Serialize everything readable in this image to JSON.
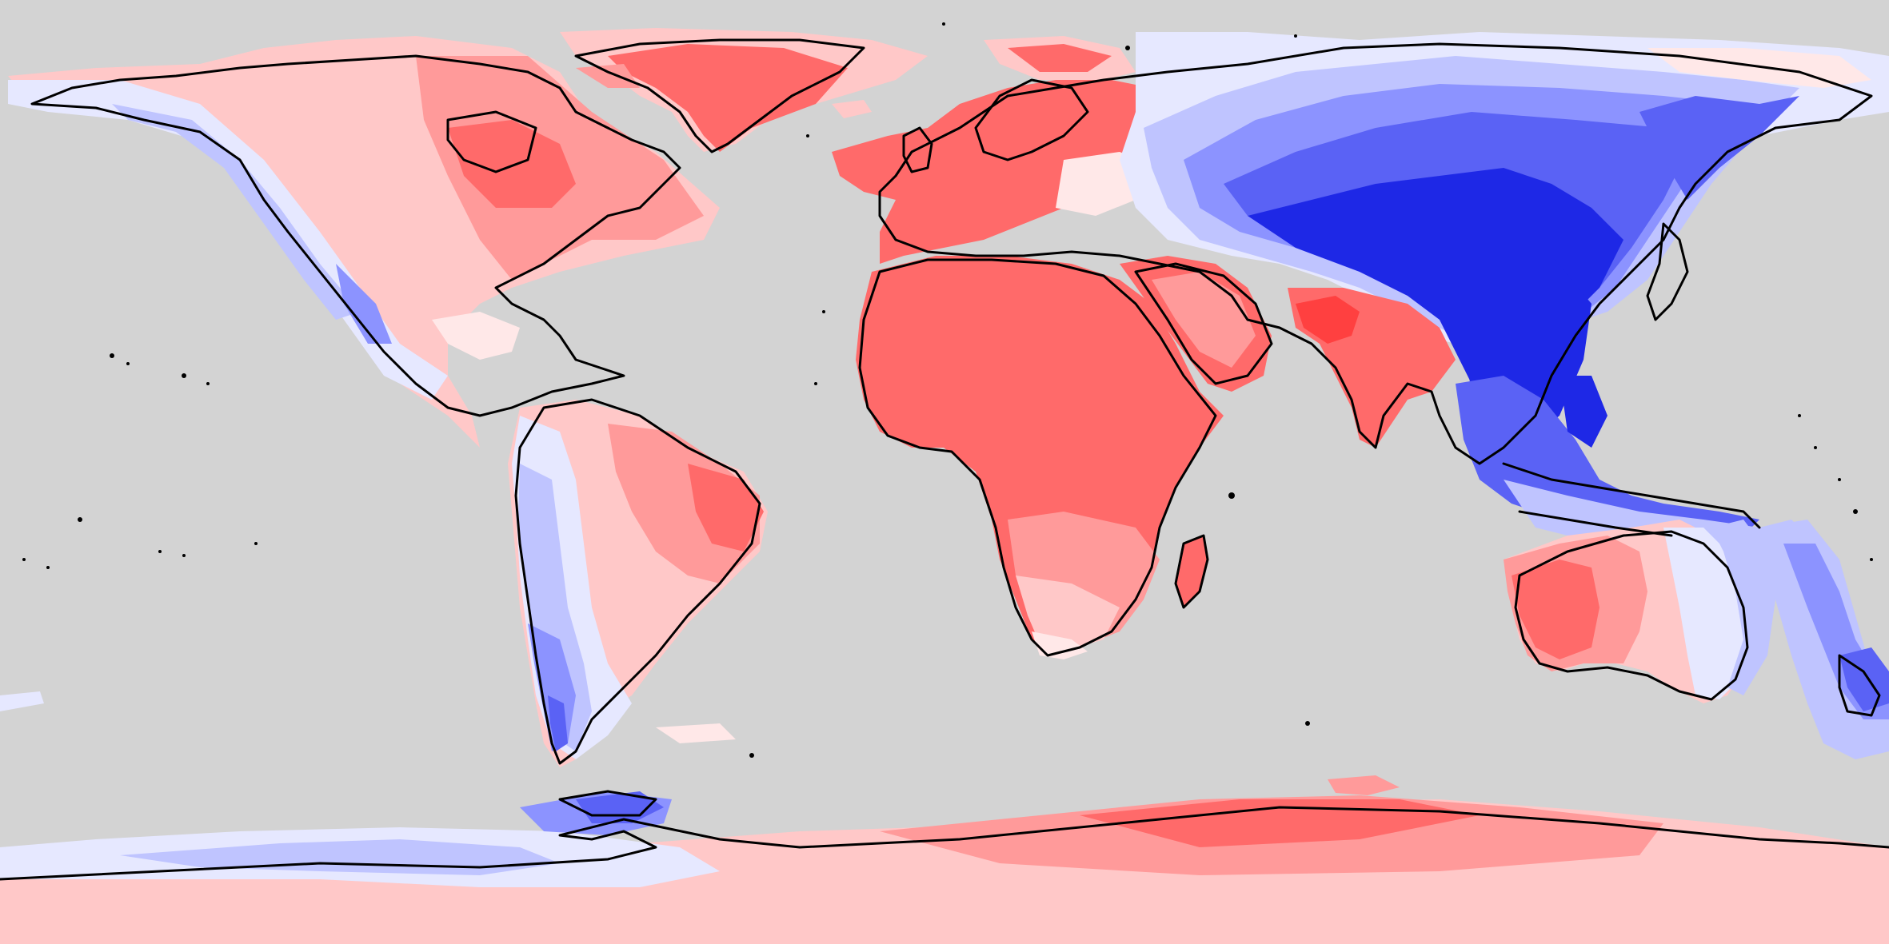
{
  "map": {
    "projection": "equirectangular",
    "style": "filled-contour anomaly map with black coastlines",
    "background": "#d3d3d3",
    "coastline_color": "#000000",
    "palette": {
      "red_strong": "#ff4040",
      "red": "#ff6a6a",
      "red_mid": "#ff9a9a",
      "red_light": "#ffc8c8",
      "red_faint": "#ffe8e8",
      "blue_faint": "#e6e8ff",
      "blue_light": "#bfc4ff",
      "blue_mid": "#8c93ff",
      "blue": "#5a62f5",
      "blue_strong": "#1e28e6"
    },
    "regions": [
      {
        "name": "north-america-west",
        "anomaly": "cool-light"
      },
      {
        "name": "north-america-east",
        "anomaly": "warm-mid"
      },
      {
        "name": "greenland",
        "anomaly": "warm"
      },
      {
        "name": "south-america-west",
        "anomaly": "cool"
      },
      {
        "name": "south-america-east",
        "anomaly": "warm-mid"
      },
      {
        "name": "europe",
        "anomaly": "warm"
      },
      {
        "name": "africa",
        "anomaly": "warm"
      },
      {
        "name": "arabia",
        "anomaly": "warm"
      },
      {
        "name": "india",
        "anomaly": "warm-strong"
      },
      {
        "name": "siberia",
        "anomaly": "cool"
      },
      {
        "name": "east-asia",
        "anomaly": "cool-strong"
      },
      {
        "name": "australia-west",
        "anomaly": "warm-mid"
      },
      {
        "name": "australia-east",
        "anomaly": "cool-light"
      },
      {
        "name": "new-zealand",
        "anomaly": "cool"
      },
      {
        "name": "antarctica-west",
        "anomaly": "cool-light"
      },
      {
        "name": "antarctica-east",
        "anomaly": "warm"
      }
    ]
  }
}
